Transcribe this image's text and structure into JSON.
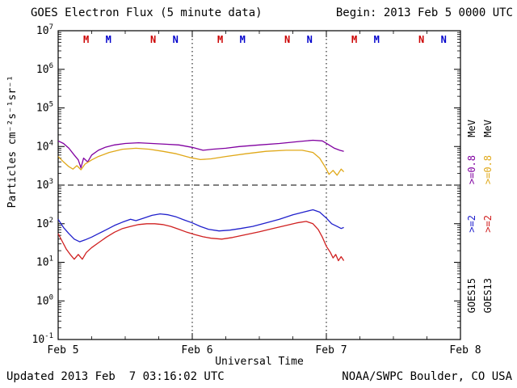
{
  "header": {
    "title": "GOES Electron Flux (5 minute data)",
    "begin": "Begin: 2013 Feb 5 0000 UTC"
  },
  "footer": {
    "updated": "Updated 2013 Feb  7 03:16:02 UTC",
    "source": "NOAA/SWPC Boulder, CO USA"
  },
  "axes": {
    "x_label": "Universal Time",
    "y_label": "Particles cm⁻²s⁻¹sr⁻¹"
  },
  "right_legend": {
    "columns": [
      {
        "satellite": "GOES15",
        "unit": "MeV",
        "entries": [
          {
            "label": ">=0.8",
            "color": "#8000a0"
          },
          {
            "label": ">=2",
            "color": "#2020cc"
          }
        ]
      },
      {
        "satellite": "GOES13",
        "unit": "MeV",
        "entries": [
          {
            "label": ">=0.8",
            "color": "#e0a818"
          },
          {
            "label": ">=2",
            "color": "#d02020"
          }
        ]
      }
    ]
  },
  "chart_data": {
    "type": "line",
    "title": "GOES Electron Flux (5 minute data)",
    "xlabel": "Universal Time",
    "ylabel": "Particles cm⁻²s⁻¹sr⁻¹",
    "x_axis": {
      "start_label": "2013 Feb 5 0000 UTC",
      "span_days": 3,
      "tick_labels": [
        "Feb 5",
        "Feb 6",
        "Feb 7",
        "Feb 8"
      ],
      "minor_tick_hours": 6
    },
    "y_axis": {
      "scale": "log",
      "min_exp": -1,
      "max_exp": 7
    },
    "threshold_line": {
      "value": 1000,
      "style": "dashed"
    },
    "vertical_gridlines_days": [
      1,
      2
    ],
    "day_markers": [
      {
        "t": 0.2083,
        "label": "M",
        "color": "#cc0000"
      },
      {
        "t": 0.375,
        "label": "M",
        "color": "#0000cc"
      },
      {
        "t": 0.7083,
        "label": "N",
        "color": "#cc0000"
      },
      {
        "t": 0.875,
        "label": "N",
        "color": "#0000cc"
      },
      {
        "t": 1.2083,
        "label": "M",
        "color": "#cc0000"
      },
      {
        "t": 1.375,
        "label": "M",
        "color": "#0000cc"
      },
      {
        "t": 1.7083,
        "label": "N",
        "color": "#cc0000"
      },
      {
        "t": 1.875,
        "label": "N",
        "color": "#0000cc"
      },
      {
        "t": 2.2083,
        "label": "M",
        "color": "#cc0000"
      },
      {
        "t": 2.375,
        "label": "M",
        "color": "#0000cc"
      },
      {
        "t": 2.7083,
        "label": "N",
        "color": "#cc0000"
      },
      {
        "t": 2.875,
        "label": "N",
        "color": "#0000cc"
      }
    ],
    "series": [
      {
        "name": "GOES15 >=0.8 MeV",
        "color": "#8000a0",
        "points": [
          [
            0.0,
            14000
          ],
          [
            0.04,
            12000
          ],
          [
            0.08,
            9000
          ],
          [
            0.12,
            6000
          ],
          [
            0.15,
            4500
          ],
          [
            0.17,
            2800
          ],
          [
            0.19,
            5000
          ],
          [
            0.22,
            4000
          ],
          [
            0.25,
            6000
          ],
          [
            0.3,
            8000
          ],
          [
            0.35,
            9500
          ],
          [
            0.42,
            11000
          ],
          [
            0.5,
            12000
          ],
          [
            0.6,
            12500
          ],
          [
            0.7,
            12000
          ],
          [
            0.8,
            11500
          ],
          [
            0.9,
            11000
          ],
          [
            1.0,
            9500
          ],
          [
            1.08,
            8000
          ],
          [
            1.15,
            8500
          ],
          [
            1.25,
            9000
          ],
          [
            1.35,
            10000
          ],
          [
            1.5,
            11000
          ],
          [
            1.65,
            12000
          ],
          [
            1.8,
            13500
          ],
          [
            1.9,
            14500
          ],
          [
            1.97,
            14000
          ],
          [
            2.02,
            11000
          ],
          [
            2.06,
            9000
          ],
          [
            2.1,
            8000
          ],
          [
            2.13,
            7500
          ]
        ]
      },
      {
        "name": "GOES13 >=0.8 MeV",
        "color": "#e0a818",
        "points": [
          [
            0.0,
            5500
          ],
          [
            0.04,
            4000
          ],
          [
            0.08,
            3000
          ],
          [
            0.11,
            2600
          ],
          [
            0.14,
            3200
          ],
          [
            0.17,
            2500
          ],
          [
            0.2,
            3500
          ],
          [
            0.25,
            4500
          ],
          [
            0.3,
            5500
          ],
          [
            0.38,
            7000
          ],
          [
            0.48,
            8500
          ],
          [
            0.58,
            9000
          ],
          [
            0.68,
            8500
          ],
          [
            0.78,
            7500
          ],
          [
            0.88,
            6500
          ],
          [
            0.98,
            5200
          ],
          [
            1.06,
            4600
          ],
          [
            1.14,
            4800
          ],
          [
            1.25,
            5500
          ],
          [
            1.4,
            6500
          ],
          [
            1.55,
            7500
          ],
          [
            1.7,
            8000
          ],
          [
            1.82,
            8000
          ],
          [
            1.9,
            7000
          ],
          [
            1.95,
            5000
          ],
          [
            1.99,
            3000
          ],
          [
            2.02,
            1900
          ],
          [
            2.05,
            2400
          ],
          [
            2.08,
            1800
          ],
          [
            2.11,
            2600
          ],
          [
            2.13,
            2200
          ]
        ]
      },
      {
        "name": "GOES15 >=2 MeV",
        "color": "#2020cc",
        "points": [
          [
            0.0,
            130
          ],
          [
            0.04,
            80
          ],
          [
            0.08,
            55
          ],
          [
            0.12,
            40
          ],
          [
            0.16,
            34
          ],
          [
            0.2,
            38
          ],
          [
            0.25,
            45
          ],
          [
            0.3,
            55
          ],
          [
            0.36,
            70
          ],
          [
            0.42,
            90
          ],
          [
            0.48,
            110
          ],
          [
            0.54,
            130
          ],
          [
            0.58,
            120
          ],
          [
            0.64,
            140
          ],
          [
            0.7,
            165
          ],
          [
            0.76,
            180
          ],
          [
            0.82,
            170
          ],
          [
            0.88,
            150
          ],
          [
            0.94,
            125
          ],
          [
            1.0,
            105
          ],
          [
            1.06,
            85
          ],
          [
            1.12,
            72
          ],
          [
            1.2,
            65
          ],
          [
            1.28,
            68
          ],
          [
            1.36,
            75
          ],
          [
            1.45,
            85
          ],
          [
            1.55,
            105
          ],
          [
            1.65,
            130
          ],
          [
            1.75,
            170
          ],
          [
            1.83,
            200
          ],
          [
            1.9,
            230
          ],
          [
            1.95,
            200
          ],
          [
            2.0,
            140
          ],
          [
            2.04,
            100
          ],
          [
            2.08,
            85
          ],
          [
            2.11,
            75
          ],
          [
            2.13,
            80
          ]
        ]
      },
      {
        "name": "GOES13 >=2 MeV",
        "color": "#d02020",
        "points": [
          [
            0.0,
            55
          ],
          [
            0.03,
            35
          ],
          [
            0.06,
            22
          ],
          [
            0.09,
            16
          ],
          [
            0.12,
            12
          ],
          [
            0.15,
            16
          ],
          [
            0.18,
            12
          ],
          [
            0.21,
            18
          ],
          [
            0.25,
            24
          ],
          [
            0.3,
            32
          ],
          [
            0.36,
            45
          ],
          [
            0.42,
            60
          ],
          [
            0.48,
            75
          ],
          [
            0.54,
            85
          ],
          [
            0.6,
            95
          ],
          [
            0.66,
            100
          ],
          [
            0.72,
            100
          ],
          [
            0.78,
            95
          ],
          [
            0.84,
            85
          ],
          [
            0.9,
            72
          ],
          [
            0.96,
            60
          ],
          [
            1.02,
            52
          ],
          [
            1.08,
            46
          ],
          [
            1.14,
            42
          ],
          [
            1.22,
            40
          ],
          [
            1.3,
            44
          ],
          [
            1.4,
            52
          ],
          [
            1.5,
            62
          ],
          [
            1.6,
            75
          ],
          [
            1.7,
            90
          ],
          [
            1.78,
            105
          ],
          [
            1.85,
            115
          ],
          [
            1.9,
            100
          ],
          [
            1.94,
            70
          ],
          [
            1.97,
            45
          ],
          [
            2.0,
            26
          ],
          [
            2.03,
            18
          ],
          [
            2.05,
            13
          ],
          [
            2.07,
            16
          ],
          [
            2.09,
            11
          ],
          [
            2.11,
            14
          ],
          [
            2.13,
            11
          ]
        ]
      }
    ]
  }
}
